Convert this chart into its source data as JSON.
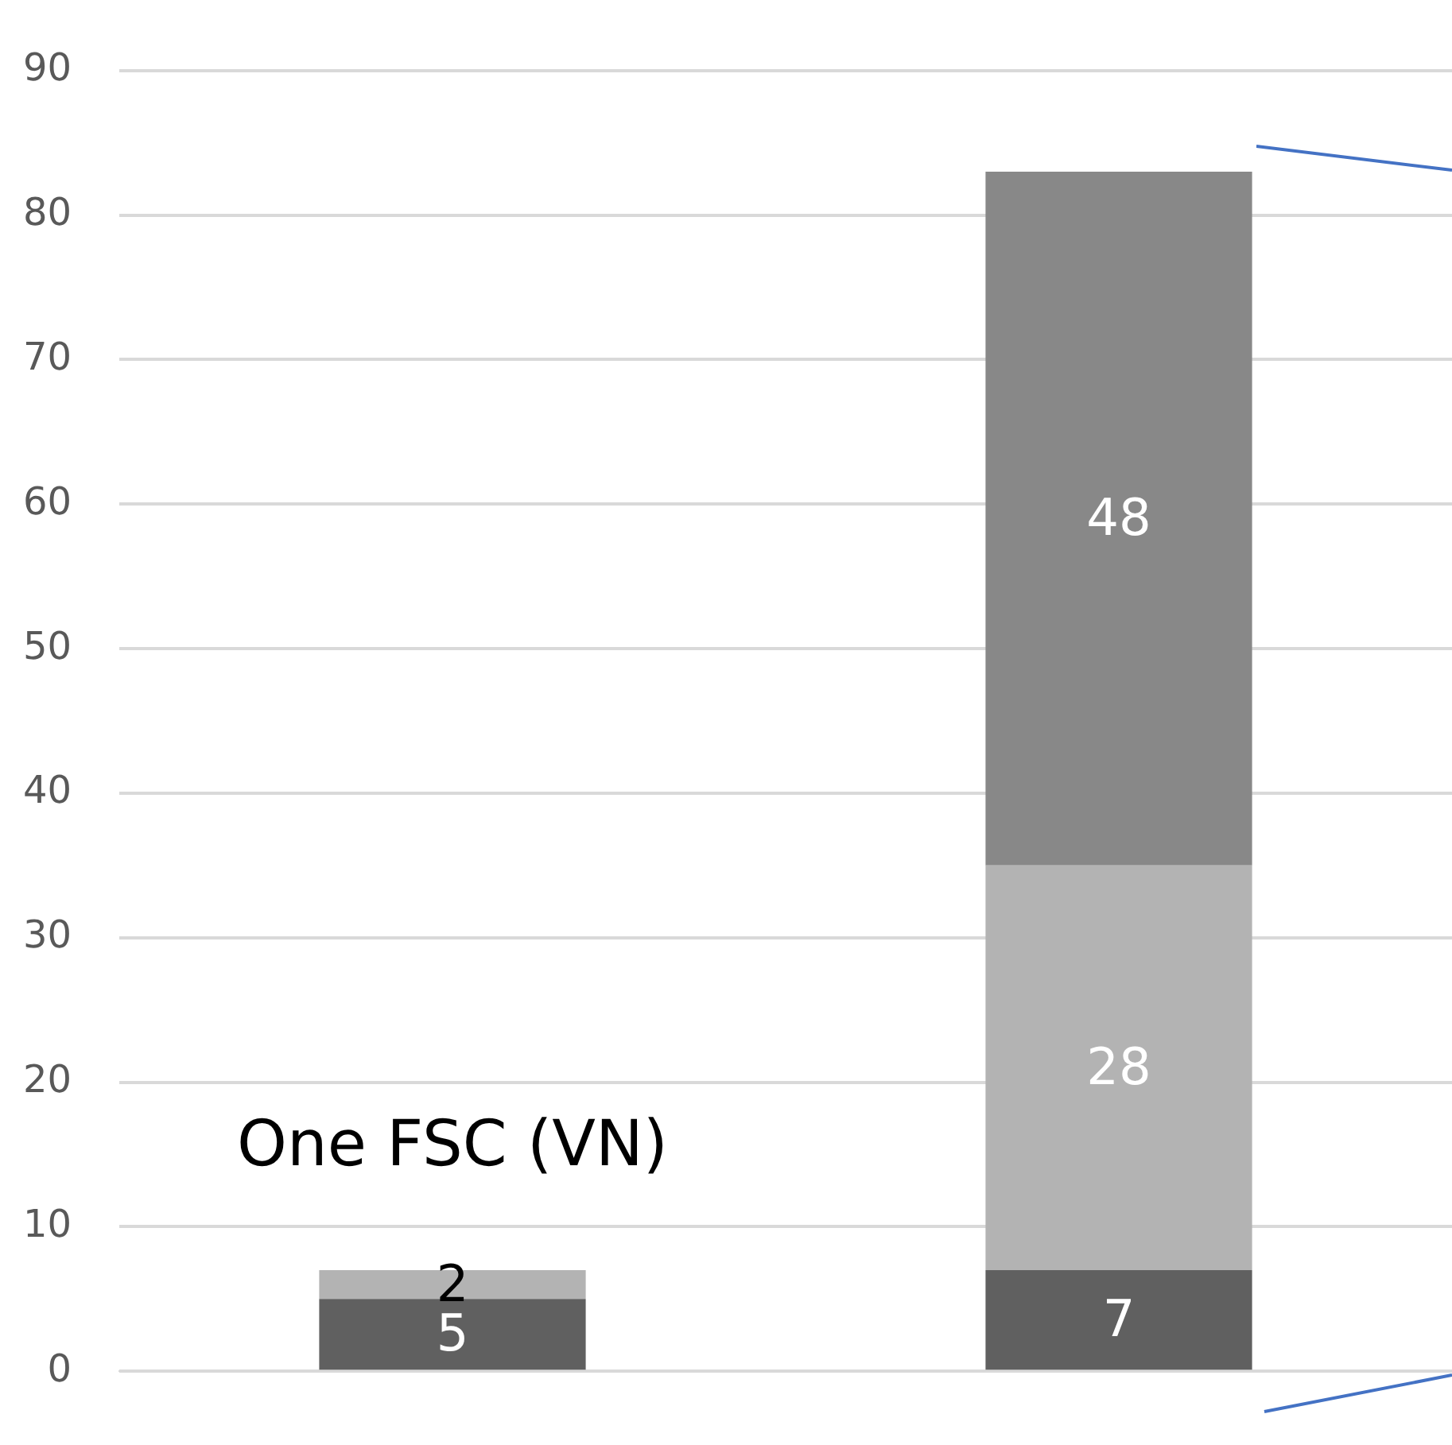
{
  "chart_data": {
    "type": "bar",
    "stacked": true,
    "categories": [
      null,
      null
    ],
    "series": [
      {
        "color": "#606060",
        "values": [
          5,
          7
        ]
      },
      {
        "color": "#b3b3b3",
        "values": [
          2,
          28
        ]
      },
      {
        "color": "#888888",
        "values": [
          null,
          48
        ]
      }
    ],
    "ylim": [
      0,
      90
    ],
    "yticks": [
      0,
      10,
      20,
      30,
      40,
      50,
      60,
      70,
      80,
      90
    ],
    "grid": "y",
    "data_labels": true,
    "legend": false,
    "annotations": [
      "One FSC (VN)"
    ]
  }
}
